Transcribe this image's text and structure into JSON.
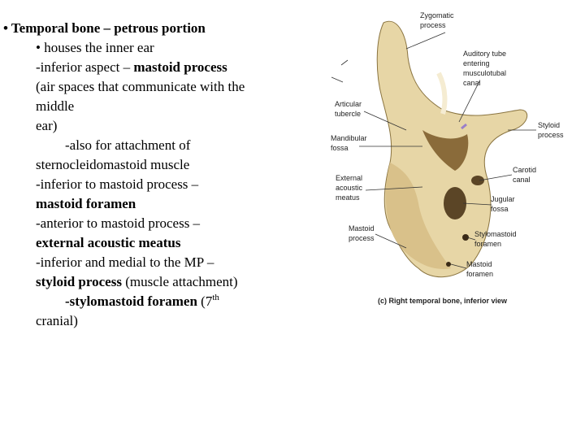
{
  "text": {
    "lines": [
      {
        "runs": [
          {
            "text": "• Temporal bone – petrous portion",
            "style": "bold"
          }
        ]
      },
      {
        "runs": [
          {
            "text": "• houses the inner ear",
            "style": "normal"
          }
        ]
      },
      {
        "runs": [
          {
            "text": "-inferior aspect – ",
            "style": "normal"
          },
          {
            "text": "mastoid process",
            "style": "bold"
          }
        ]
      },
      {
        "runs": [
          {
            "text": "(air spaces that communicate with the",
            "style": "normal"
          }
        ]
      },
      {
        "runs": [
          {
            "text": "middle",
            "style": "normal"
          }
        ]
      },
      {
        "runs": [
          {
            "text": "ear)",
            "style": "normal"
          }
        ]
      },
      {
        "runs": [
          {
            "text": "-also for attachment of",
            "style": "normal"
          }
        ]
      },
      {
        "runs": [
          {
            "text": "sternocleidomastoid muscle",
            "style": "normal"
          }
        ]
      },
      {
        "runs": [
          {
            "text": "-inferior to mastoid process –",
            "style": "normal"
          }
        ]
      },
      {
        "runs": [
          {
            "text": "mastoid foramen",
            "style": "bold"
          }
        ]
      },
      {
        "runs": [
          {
            "text": "-anterior to mastoid process –",
            "style": "normal"
          }
        ]
      },
      {
        "runs": [
          {
            "text": "external acoustic meatus",
            "style": "bold"
          }
        ]
      },
      {
        "runs": [
          {
            "text": "-inferior and medial to the MP –",
            "style": "normal"
          }
        ]
      },
      {
        "runs": [
          {
            "text": "styloid process",
            "style": "bold"
          },
          {
            "text": " (muscle attachment)",
            "style": "normal"
          }
        ]
      },
      {
        "runs": [
          {
            "text": "-stylomastoid foramen",
            "style": "bold"
          },
          {
            "text": " (7",
            "style": "normal"
          },
          {
            "text": "th",
            "style": "sup"
          }
        ]
      },
      {
        "runs": [
          {
            "text": "cranial)",
            "style": "normal"
          }
        ]
      }
    ]
  },
  "figure": {
    "labels": [
      {
        "lines": [
          "Zygomatic",
          "process"
        ]
      },
      {
        "lines": [
          "Auditory tube",
          "entering",
          "musculotubal",
          "canal"
        ]
      },
      {
        "lines": [
          "Articular",
          "tubercle"
        ]
      },
      {
        "lines": [
          "Mandibular",
          "fossa"
        ]
      },
      {
        "lines": [
          "Styloid",
          "process"
        ]
      },
      {
        "lines": [
          "Carotid",
          "canal"
        ]
      },
      {
        "lines": [
          "External",
          "acoustic",
          "meatus"
        ]
      },
      {
        "lines": [
          "Jugular",
          "fossa"
        ]
      },
      {
        "lines": [
          "Mastoid",
          "process"
        ]
      },
      {
        "lines": [
          "Stylomastoid",
          "foramen"
        ]
      },
      {
        "lines": [
          "Mastoid",
          "foramen"
        ]
      }
    ],
    "caption": "(c) Right temporal bone, inferior view"
  }
}
